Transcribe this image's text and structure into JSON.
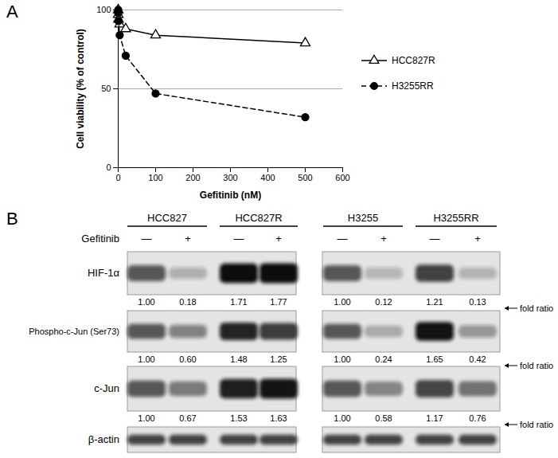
{
  "chart_data": {
    "type": "line",
    "x_label": "Gefitinib (nM)",
    "y_label": "Cell viability (% of control)",
    "x": [
      0,
      0.16,
      0.8,
      4,
      20,
      100,
      500
    ],
    "series": [
      {
        "name": "HCC827R",
        "color": "#000000",
        "marker": "triangle-open",
        "line_style": "solid",
        "values": [
          100,
          97,
          94,
          91,
          88,
          84,
          79
        ],
        "errors": [
          1,
          1,
          1,
          1,
          2,
          2,
          2
        ]
      },
      {
        "name": "H3255RR",
        "color": "#000000",
        "marker": "circle",
        "line_style": "dashed",
        "values": [
          100,
          98,
          93,
          84,
          71,
          47,
          32
        ],
        "errors": [
          1,
          1,
          1,
          2,
          2,
          2,
          2
        ]
      }
    ],
    "xlim": [
      0,
      600
    ],
    "xticks": [
      0,
      100,
      200,
      300,
      400,
      500,
      600
    ],
    "ylim": [
      0,
      100
    ],
    "yticks": [
      0,
      50,
      100
    ],
    "grid": true,
    "legend": "right"
  },
  "panel_labels": [
    "A",
    "B"
  ],
  "western_blot": {
    "treatment_label": "Gefitinib",
    "annotation": "fold ratio",
    "blocks": [
      {
        "cell_lines": [
          "HCC827",
          "HCC827R"
        ],
        "treatment": [
          "—",
          "+",
          "—",
          "+"
        ]
      },
      {
        "cell_lines": [
          "H3255",
          "H3255RR"
        ],
        "treatment": [
          "—",
          "+",
          "—",
          "+"
        ]
      }
    ],
    "rows": [
      {
        "label": "HIF-1α",
        "values": [
          [
            1,
            0.18,
            1.71,
            1.77
          ],
          [
            1,
            0.12,
            1.21,
            0.13
          ]
        ],
        "value_labels": [
          [
            "1.00",
            "0.18",
            "1.71",
            "1.77"
          ],
          [
            "1.00",
            "0.12",
            "1.21",
            "0.13"
          ]
        ]
      },
      {
        "label": "Phospho-c-Jun (Ser73)",
        "values": [
          [
            1,
            0.6,
            1.48,
            1.25
          ],
          [
            1,
            0.24,
            1.65,
            0.42
          ]
        ],
        "value_labels": [
          [
            "1.00",
            "0.60",
            "1.48",
            "1.25"
          ],
          [
            "1.00",
            "0.24",
            "1.65",
            "0.42"
          ]
        ]
      },
      {
        "label": "c-Jun",
        "values": [
          [
            1,
            0.67,
            1.53,
            1.63
          ],
          [
            1,
            0.58,
            1.17,
            0.76
          ]
        ],
        "value_labels": [
          [
            "1.00",
            "0.67",
            "1.53",
            "1.63"
          ],
          [
            "1.00",
            "0.58",
            "1.17",
            "0.76"
          ]
        ]
      },
      {
        "label": "β-actin"
      }
    ]
  }
}
